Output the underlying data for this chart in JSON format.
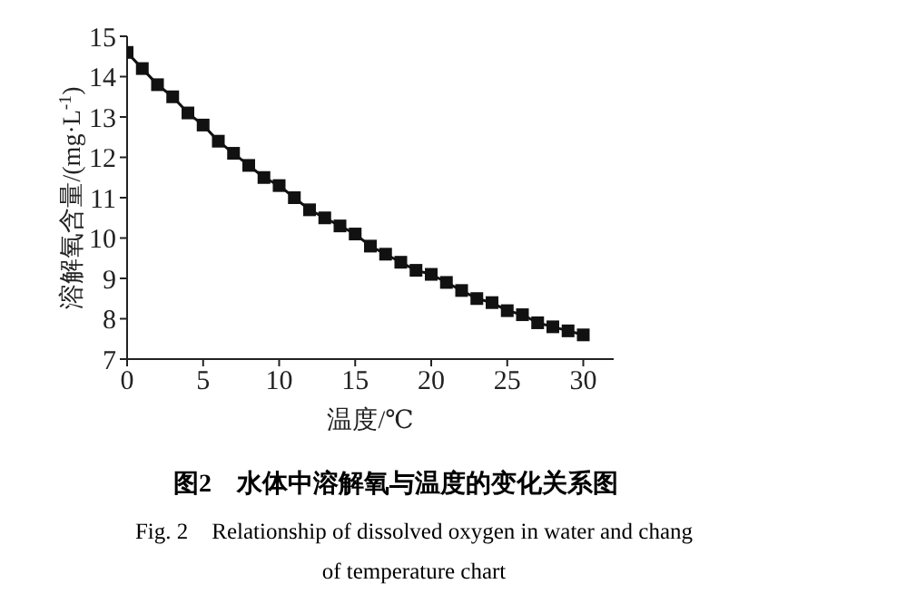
{
  "chart_data": {
    "type": "line",
    "title": "图2　水体中溶解氧与温度的变化关系图",
    "subtitle": "Fig. 2　Relationship of dissolved oxygen in water and chang of temperature chart",
    "xlabel": "温度/℃",
    "ylabel": "溶解氧含量/(mg·L$^{-1}$)",
    "x": [
      0,
      1,
      2,
      3,
      4,
      5,
      6,
      7,
      8,
      9,
      10,
      11,
      12,
      13,
      14,
      15,
      16,
      17,
      18,
      19,
      20,
      21,
      22,
      23,
      24,
      25,
      26,
      27,
      28,
      29,
      30
    ],
    "series": [
      {
        "color": "#111111",
        "values": [
          14.6,
          14.2,
          13.8,
          13.5,
          13.1,
          12.8,
          12.4,
          12.1,
          11.8,
          11.5,
          11.3,
          11.0,
          10.7,
          10.5,
          10.3,
          10.1,
          9.8,
          9.6,
          9.4,
          9.2,
          9.1,
          8.9,
          8.7,
          8.5,
          8.4,
          8.2,
          8.1,
          7.9,
          7.8,
          7.7,
          7.6
        ]
      }
    ],
    "xlim": [
      0,
      32
    ],
    "xticks": [
      0,
      5,
      10,
      15,
      20,
      25,
      30
    ],
    "ylim": [
      7,
      15
    ],
    "yticks": [
      7,
      8,
      9,
      10,
      11,
      12,
      13,
      14,
      15
    ],
    "marker": "square",
    "line_style": "solid",
    "grid": false,
    "legend": false
  }
}
